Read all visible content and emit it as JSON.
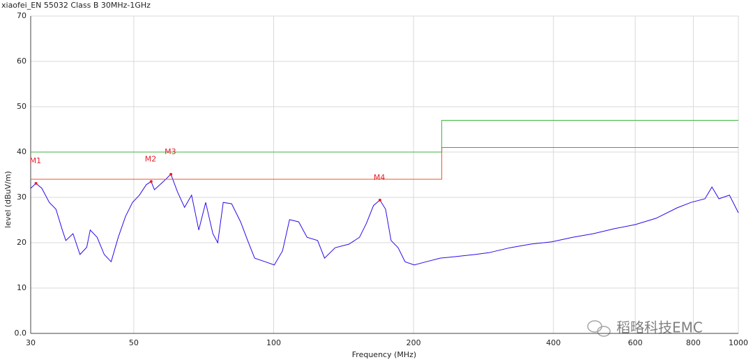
{
  "chart_data": {
    "type": "line",
    "title": "xiaofei_EN 55032 Class B 30MHz-1GHz",
    "x_label": "Frequency (MHz)",
    "y_label": "level (dBuV/m)",
    "xscale": "log",
    "xlim": [
      30,
      1000
    ],
    "xticks": [
      30,
      50,
      100,
      200,
      400,
      600,
      800,
      1000
    ],
    "ylim": [
      0,
      70
    ],
    "yticks": [
      {
        "value": 0,
        "label": "0.0"
      },
      10,
      20,
      30,
      40,
      50,
      60,
      70
    ],
    "grid": true,
    "series": [
      {
        "color": "#2a0ae8",
        "x": [
          30.0,
          30.8,
          31.7,
          32.9,
          34.0,
          35.1,
          35.7,
          37.0,
          38.3,
          39.6,
          40.3,
          41.7,
          43.2,
          44.7,
          46.3,
          48.0,
          49.7,
          51.4,
          53.2,
          54.5,
          55.4,
          57.9,
          60.1,
          62.1,
          64.3,
          66.6,
          69.0,
          71.4,
          74.0,
          75.8,
          77.9,
          81.2,
          84.9,
          87.9,
          91.0,
          95.9,
          100.3,
          104.5,
          108.2,
          113.2,
          118.0,
          124.3,
          128.7,
          135.6,
          145.3,
          153.0,
          158.4,
          164.0,
          169.3,
          174.1,
          178.9,
          185.3,
          191.8,
          200.7,
          212.9,
          228.1,
          244.4,
          271.1,
          290.5,
          322.3,
          357.4,
          396.4,
          439.7,
          487.7,
          540.9,
          599.9,
          665.5,
          738.1,
          791.0,
          847.6,
          877.4,
          908.2,
          956.9,
          991.1,
          1000
        ],
        "values": [
          32.0,
          33.1,
          32.0,
          28.9,
          27.4,
          22.8,
          20.5,
          22.0,
          17.4,
          19.0,
          22.8,
          21.2,
          17.4,
          15.8,
          21.2,
          25.8,
          28.9,
          30.5,
          32.8,
          33.5,
          31.7,
          33.5,
          35.1,
          31.2,
          27.8,
          30.5,
          22.8,
          28.9,
          22.0,
          20.0,
          28.9,
          28.6,
          24.6,
          20.5,
          16.6,
          15.8,
          15.1,
          18.2,
          25.1,
          24.6,
          21.2,
          20.5,
          16.6,
          18.9,
          19.7,
          21.2,
          24.3,
          28.2,
          29.4,
          27.4,
          20.5,
          18.9,
          15.8,
          15.1,
          15.8,
          16.6,
          16.9,
          17.4,
          17.8,
          18.9,
          19.7,
          20.2,
          21.2,
          22.0,
          23.1,
          24.0,
          25.4,
          27.7,
          28.9,
          29.7,
          32.3,
          29.7,
          30.5,
          27.4,
          26.6
        ]
      },
      {
        "color": "#3cb43c",
        "x": [
          30,
          230,
          230,
          1000
        ],
        "values": [
          40,
          40,
          47,
          47
        ]
      },
      {
        "color": "#e8552e",
        "x": [
          30,
          230,
          230,
          1000
        ],
        "values": [
          34,
          34,
          41,
          41
        ]
      }
    ],
    "markers": [
      {
        "label": "M1",
        "x": 30.8,
        "value": 33.1
      },
      {
        "label": "M2",
        "x": 54.5,
        "value": 33.5
      },
      {
        "label": "M3",
        "x": 60.1,
        "value": 35.1
      },
      {
        "label": "M4",
        "x": 169.3,
        "value": 29.4
      }
    ],
    "marker_color": "#e8202a",
    "watermark": "稻略科技EMC"
  }
}
